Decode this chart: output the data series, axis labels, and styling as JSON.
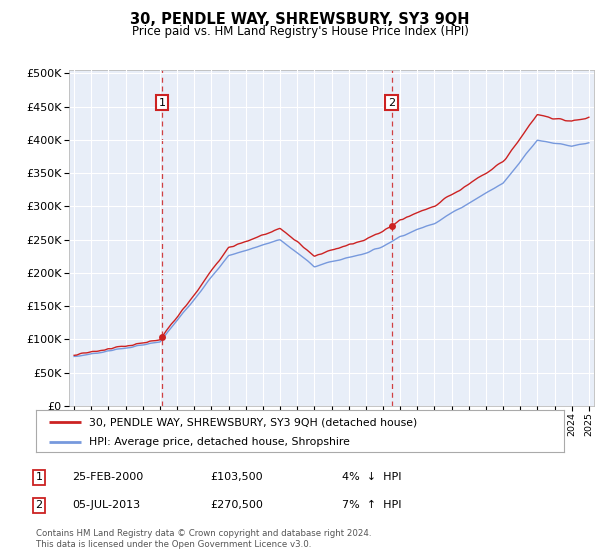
{
  "title": "30, PENDLE WAY, SHREWSBURY, SY3 9QH",
  "subtitle": "Price paid vs. HM Land Registry's House Price Index (HPI)",
  "background_color": "#e8eef8",
  "ylim": [
    0,
    500000
  ],
  "yticks": [
    0,
    50000,
    100000,
    150000,
    200000,
    250000,
    300000,
    350000,
    400000,
    450000,
    500000
  ],
  "sale1_date": 2000.12,
  "sale1_price": 103500,
  "sale2_date": 2013.5,
  "sale2_price": 270500,
  "legend_line1": "30, PENDLE WAY, SHREWSBURY, SY3 9QH (detached house)",
  "legend_line2": "HPI: Average price, detached house, Shropshire",
  "footnote": "Contains HM Land Registry data © Crown copyright and database right 2024.\nThis data is licensed under the Open Government Licence v3.0.",
  "hpi_line_color": "#7799dd",
  "price_line_color": "#cc2222",
  "sale_marker_color": "#cc2222",
  "dashed_line_color": "#cc2222",
  "box_color": "#cc2222",
  "xmin": 1995,
  "xmax": 2025
}
